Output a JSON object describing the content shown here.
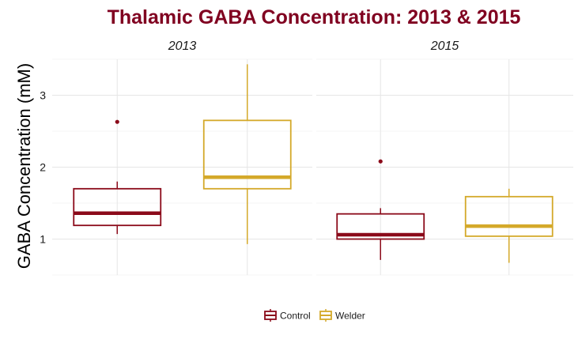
{
  "chart_data": {
    "type": "boxplot",
    "title": "Thalamic GABA Concentration: 2013 & 2015",
    "title_color": "#800020",
    "ylabel": "GABA Concentration (mM)",
    "xlabel": "",
    "ylim": [
      0.5,
      3.5
    ],
    "yticks": [
      1,
      2,
      3
    ],
    "grid": true,
    "legend_position": "bottom",
    "groups": [
      "Control",
      "Welder"
    ],
    "colors": {
      "Control": "#8B0A1A",
      "Welder": "#D4A92A"
    },
    "panels": [
      {
        "label": "2013",
        "boxes": [
          {
            "group": "Control",
            "min": 1.07,
            "q1": 1.19,
            "median": 1.36,
            "q3": 1.7,
            "max": 1.8,
            "outliers": [
              2.63
            ]
          },
          {
            "group": "Welder",
            "min": 0.93,
            "q1": 1.7,
            "median": 1.86,
            "q3": 2.65,
            "max": 3.43,
            "outliers": []
          }
        ]
      },
      {
        "label": "2015",
        "boxes": [
          {
            "group": "Control",
            "min": 0.71,
            "q1": 1.0,
            "median": 1.06,
            "q3": 1.35,
            "max": 1.43,
            "outliers": [
              2.08
            ]
          },
          {
            "group": "Welder",
            "min": 0.67,
            "q1": 1.04,
            "median": 1.18,
            "q3": 1.59,
            "max": 1.7,
            "outliers": []
          }
        ]
      }
    ]
  }
}
